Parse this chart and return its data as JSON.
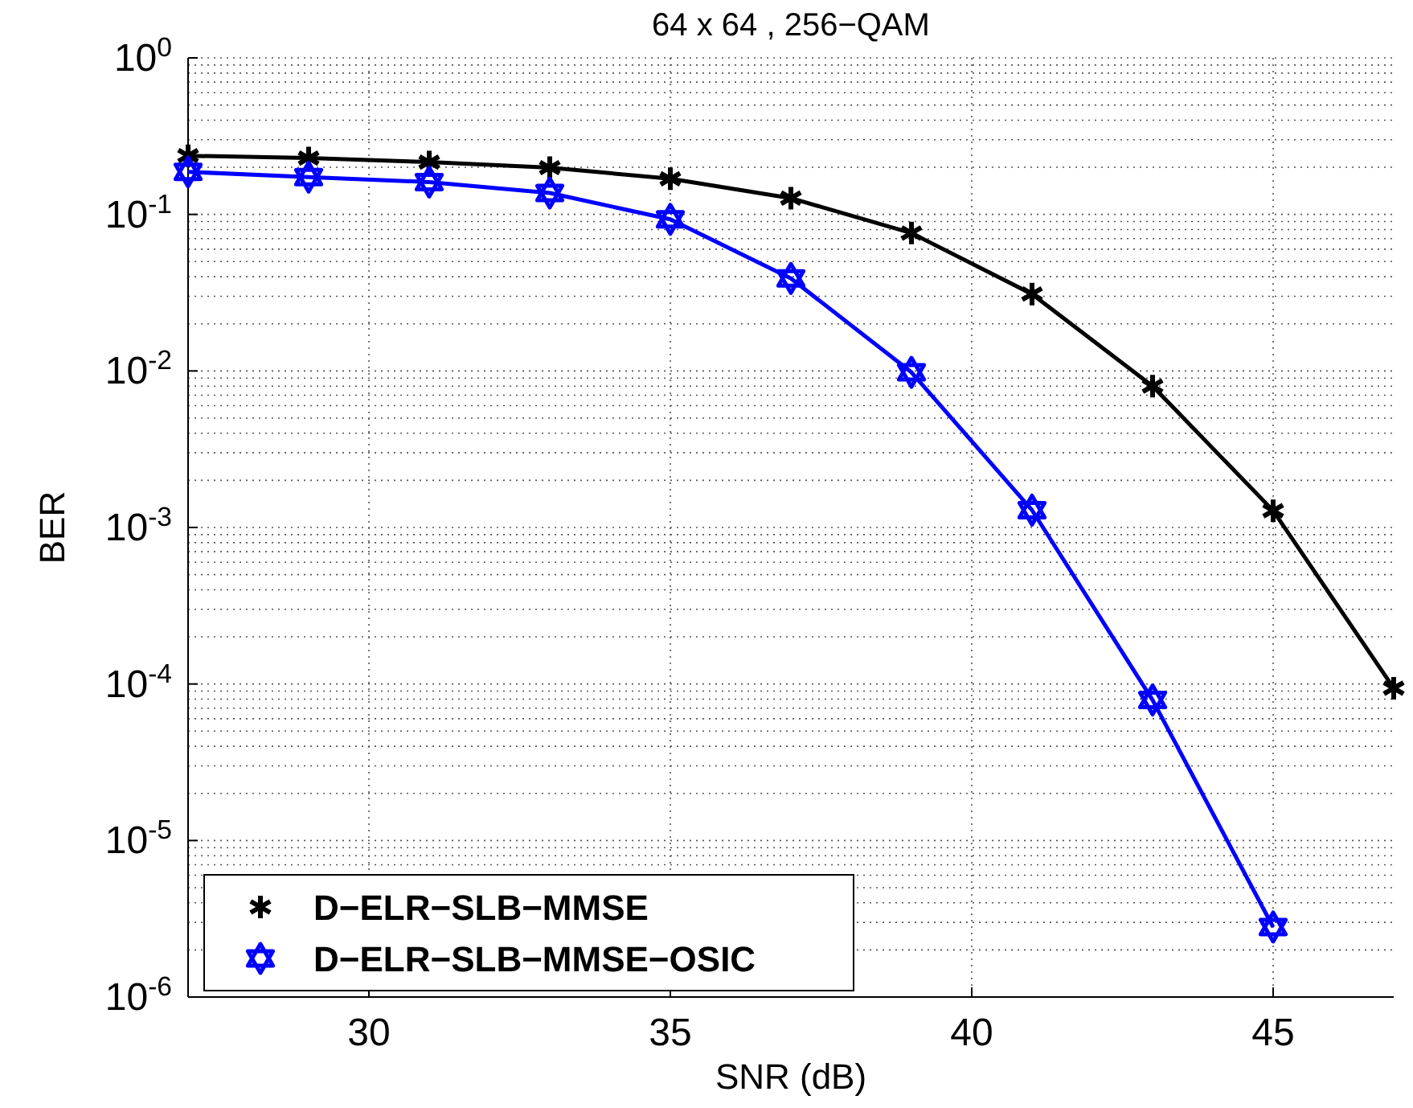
{
  "chart_data": {
    "type": "line",
    "title": "64 x 64 , 256−QAM",
    "xlabel": "SNR (dB)",
    "ylabel": "BER",
    "x": [
      27,
      29,
      31,
      33,
      35,
      37,
      39,
      41,
      43,
      45,
      47
    ],
    "series": [
      {
        "name": "D−ELR−SLB−MMSE",
        "color": "#000000",
        "marker": "cross",
        "values": [
          0.237,
          0.229,
          0.216,
          0.199,
          0.169,
          0.127,
          0.076,
          0.031,
          0.008,
          0.00128,
          9.4e-05
        ]
      },
      {
        "name": "D−ELR−SLB−MMSE−OSIC",
        "color": "#0000ff",
        "marker": "star",
        "values": [
          0.187,
          0.173,
          0.161,
          0.137,
          0.093,
          0.039,
          0.0098,
          0.00129,
          7.9e-05,
          2.8e-06,
          null
        ]
      }
    ],
    "xlim": [
      27,
      47
    ],
    "xticks": [
      30,
      35,
      40,
      45
    ],
    "ylim": [
      1e-06,
      1
    ],
    "yticks": [
      {
        "value": 1e-06,
        "label": "10$^{-6}$"
      },
      {
        "value": 1e-05,
        "label": "10$^{-5}$"
      },
      {
        "value": 0.0001,
        "label": "10$^{-4}$"
      },
      {
        "value": 0.001,
        "label": "10$^{-3}$"
      },
      {
        "value": 0.01,
        "label": "10$^{-2}$"
      },
      {
        "value": 0.1,
        "label": "10$^{-1}$"
      },
      {
        "value": 1,
        "label": "10$^{0}$"
      }
    ],
    "log": "y",
    "grid": true,
    "legend": "bottom left",
    "line_style": "solid"
  }
}
